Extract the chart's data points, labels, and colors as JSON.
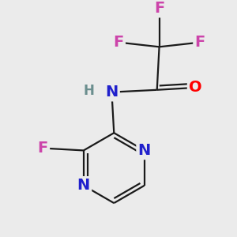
{
  "background_color": "#ebebeb",
  "atom_colors": {
    "C": "#1a1a1a",
    "H": "#6b8e8e",
    "N": "#2020cc",
    "O": "#ff0000",
    "F": "#cc44aa"
  },
  "bond_color": "#1a1a1a",
  "bond_width": 1.6,
  "dbo": 0.018,
  "figsize": [
    3.0,
    3.0
  ],
  "dpi": 100,
  "font_size_atoms": 14,
  "font_size_H": 12
}
